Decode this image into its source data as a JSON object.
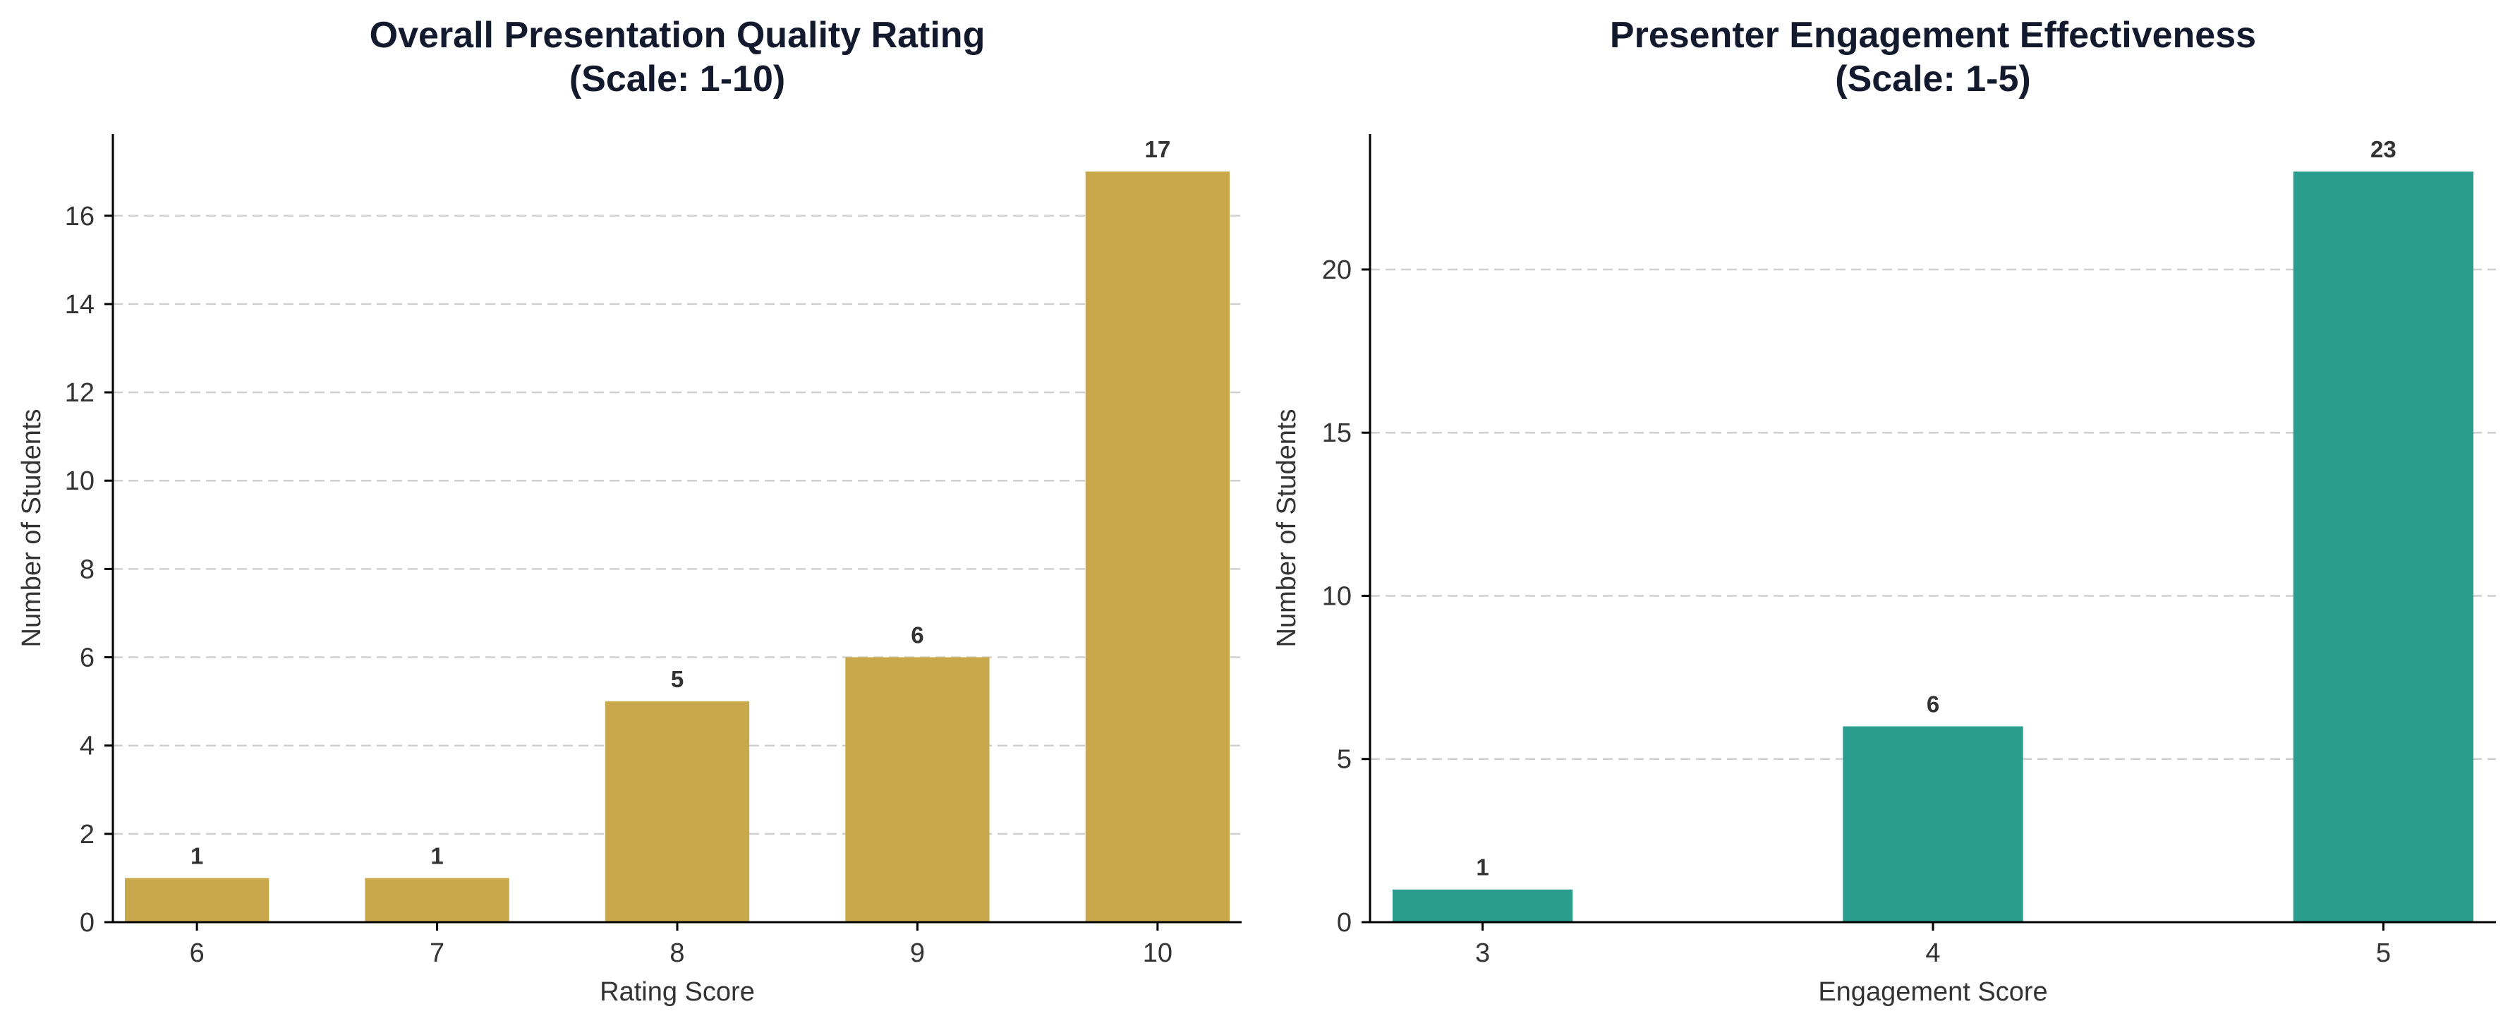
{
  "chart_data": [
    {
      "type": "bar",
      "title": "Overall Presentation Quality Rating\n(Scale: 1-10)",
      "xlabel": "Rating Score",
      "ylabel": "Number of Students",
      "categories": [
        "6",
        "7",
        "8",
        "9",
        "10"
      ],
      "values": [
        1,
        1,
        5,
        6,
        17
      ],
      "ylim": [
        0,
        17.85
      ],
      "yticks": [
        0,
        2,
        4,
        6,
        8,
        10,
        12,
        14,
        16
      ],
      "color": "#c9a84c",
      "grid": true
    },
    {
      "type": "bar",
      "title": "Presenter Engagement Effectiveness\n(Scale: 1-5)",
      "xlabel": "Engagement Score",
      "ylabel": "Number of Students",
      "categories": [
        "3",
        "4",
        "5"
      ],
      "values": [
        1,
        6,
        23
      ],
      "ylim": [
        0,
        24.15
      ],
      "yticks": [
        0,
        5,
        10,
        15,
        20
      ],
      "color": "#2a9d8f",
      "grid": true
    }
  ]
}
